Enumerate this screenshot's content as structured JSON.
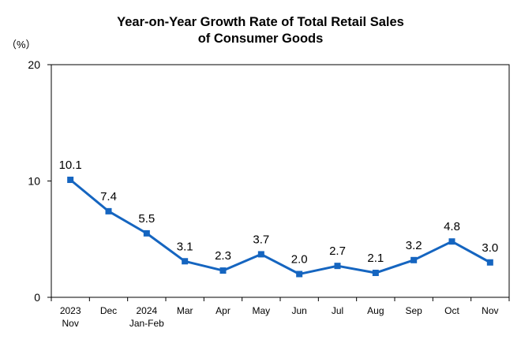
{
  "chart_data": {
    "type": "line",
    "title_line1": "Year-on-Year Growth Rate of Total Retail Sales",
    "title_line2": "of Consumer Goods",
    "ylabel": "（%）",
    "ylim": [
      0,
      20
    ],
    "yticks": [
      "0",
      "10",
      "20"
    ],
    "grid": false,
    "categories": [
      [
        "2023",
        "Nov"
      ],
      [
        "Dec"
      ],
      [
        "2024",
        "Jan-Feb"
      ],
      [
        "Mar"
      ],
      [
        "Apr"
      ],
      [
        "May"
      ],
      [
        "Jun"
      ],
      [
        "Jul"
      ],
      [
        "Aug"
      ],
      [
        "Sep"
      ],
      [
        "Oct"
      ],
      [
        "Nov"
      ]
    ],
    "series": [
      {
        "name": "Year-on-Year Growth Rate",
        "values": [
          10.1,
          7.4,
          5.5,
          3.1,
          2.3,
          3.7,
          2.0,
          2.7,
          2.1,
          3.2,
          4.8,
          3.0
        ],
        "labels": [
          "10.1",
          "7.4",
          "5.5",
          "3.1",
          "2.3",
          "3.7",
          "2.0",
          "2.7",
          "2.1",
          "3.2",
          "4.8",
          "3.0"
        ]
      }
    ],
    "line_color": "#1565c0"
  }
}
